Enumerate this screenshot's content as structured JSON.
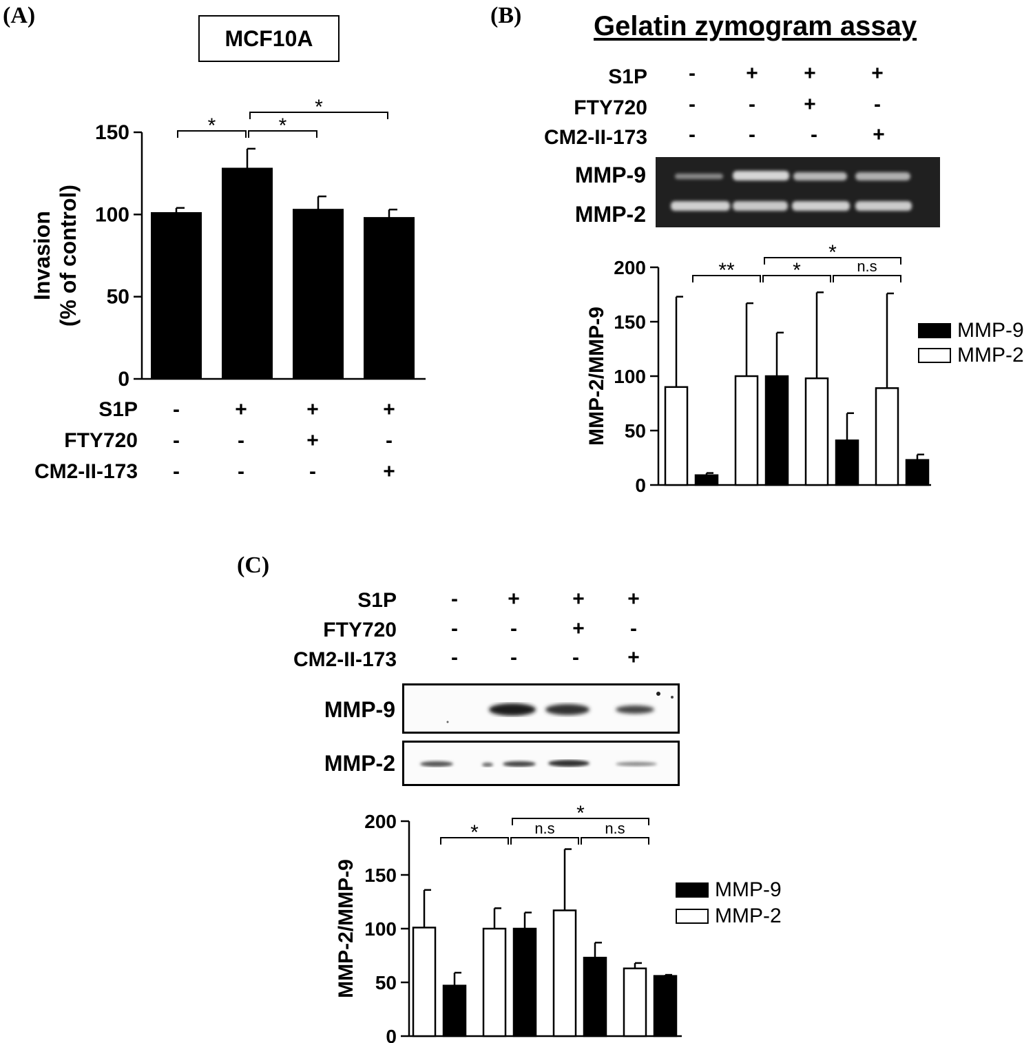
{
  "panels": {
    "A": {
      "label": "(A)",
      "cell_line_box": "MCF10A"
    },
    "B": {
      "label": "(B)",
      "title": "Gelatin zymogram assay",
      "blot_labels": [
        "MMP-9",
        "MMP-2"
      ]
    },
    "C": {
      "label": "(C)",
      "blot_labels": [
        "MMP-9",
        "MMP-2"
      ]
    }
  },
  "conditions": {
    "labels": [
      "S1P",
      "FTY720",
      "CM2-II-173"
    ],
    "signs": [
      [
        "-",
        "+",
        "+",
        "+"
      ],
      [
        "-",
        "-",
        "+",
        "-"
      ],
      [
        "-",
        "-",
        "-",
        "+"
      ]
    ]
  },
  "chart_data": [
    {
      "id": "A",
      "type": "bar",
      "ylabel": "Invasion",
      "ylabel2": "(% of control)",
      "ylim": [
        0,
        150
      ],
      "yticks": [
        0,
        50,
        100,
        150
      ],
      "categories": [
        "1",
        "2",
        "3",
        "4"
      ],
      "values": [
        101,
        128,
        103,
        98
      ],
      "errors": [
        3,
        12,
        8,
        5
      ],
      "bar_color": "#000000",
      "significance": [
        {
          "from": 0,
          "to": 1,
          "label": "*",
          "level": 0
        },
        {
          "from": 1,
          "to": 2,
          "label": "*",
          "level": 0
        },
        {
          "from": 1,
          "to": 3,
          "label": "*",
          "level": 1
        }
      ]
    },
    {
      "id": "B",
      "type": "bar",
      "ylabel": "MMP-2/MMP-9",
      "ylim": [
        0,
        200
      ],
      "yticks": [
        0,
        50,
        100,
        150,
        200
      ],
      "categories": [
        "1",
        "2",
        "3",
        "4"
      ],
      "series": [
        {
          "name": "MMP-2",
          "color": "#ffffff",
          "values": [
            90,
            100,
            98,
            89
          ],
          "errors": [
            83,
            67,
            79,
            87
          ]
        },
        {
          "name": "MMP-9",
          "color": "#000000",
          "values": [
            9,
            100,
            41,
            23
          ],
          "errors": [
            2,
            40,
            25,
            5
          ]
        }
      ],
      "legend": [
        {
          "name": "MMP-9",
          "color": "#000000"
        },
        {
          "name": "MMP-2",
          "color": "#ffffff"
        }
      ],
      "significance": [
        {
          "from": 0,
          "to": 1,
          "label": "**",
          "level": 0
        },
        {
          "from": 1,
          "to": 2,
          "label": "*",
          "level": 0
        },
        {
          "from": 2,
          "to": 3,
          "label": "n.s",
          "level": 0
        },
        {
          "from": 1,
          "to": 3,
          "label": "*",
          "level": 1
        }
      ]
    },
    {
      "id": "C",
      "type": "bar",
      "ylabel": "MMP-2/MMP-9",
      "ylim": [
        0,
        200
      ],
      "yticks": [
        0,
        50,
        100,
        150,
        200
      ],
      "categories": [
        "1",
        "2",
        "3",
        "4"
      ],
      "series": [
        {
          "name": "MMP-2",
          "color": "#ffffff",
          "values": [
            101,
            100,
            117,
            63
          ],
          "errors": [
            35,
            19,
            57,
            5
          ]
        },
        {
          "name": "MMP-9",
          "color": "#000000",
          "values": [
            47,
            100,
            73,
            56
          ],
          "errors": [
            12,
            15,
            14,
            1
          ]
        }
      ],
      "legend": [
        {
          "name": "MMP-9",
          "color": "#000000"
        },
        {
          "name": "MMP-2",
          "color": "#ffffff"
        }
      ],
      "significance": [
        {
          "from": 0,
          "to": 1,
          "label": "*",
          "level": 0
        },
        {
          "from": 1,
          "to": 2,
          "label": "n.s",
          "level": 0
        },
        {
          "from": 2,
          "to": 3,
          "label": "n.s",
          "level": 0
        },
        {
          "from": 1,
          "to": 3,
          "label": "*",
          "level": 1
        }
      ]
    }
  ]
}
